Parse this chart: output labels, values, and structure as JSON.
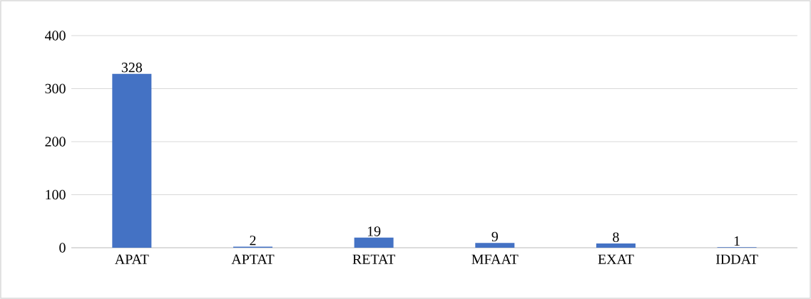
{
  "chart_data": {
    "type": "bar",
    "categories": [
      "APAT",
      "APTAT",
      "RETAT",
      "MFAAT",
      "EXAT",
      "IDDAT"
    ],
    "values": [
      328,
      2,
      19,
      9,
      8,
      1
    ],
    "color": "#4472c4",
    "ylim": [
      0,
      400
    ],
    "yticks": [
      0,
      100,
      200,
      300,
      400
    ],
    "grid": "y",
    "data_labels": true
  }
}
